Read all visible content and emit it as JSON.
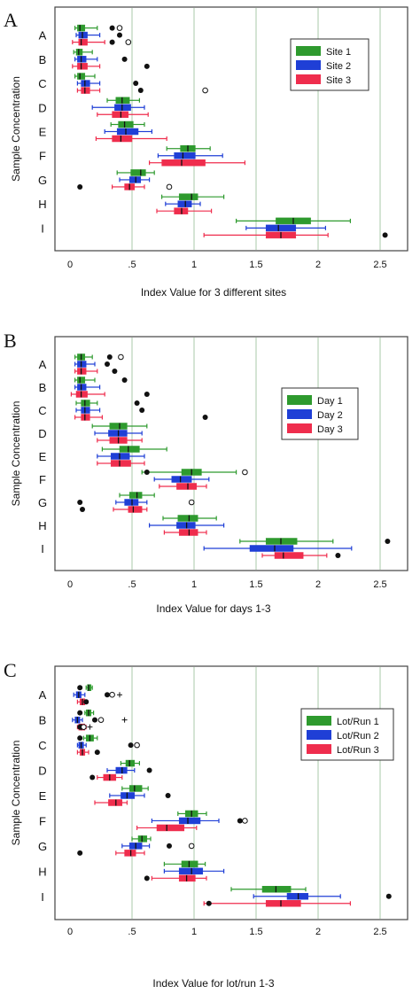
{
  "colors": {
    "series1": "#2e9a2e",
    "series2": "#1f3fd6",
    "series3": "#ef2d4d",
    "grid": "#a8c8a8",
    "frame": "#444444"
  },
  "chart_data": [
    {
      "type": "box",
      "panel_label": "A",
      "xlabel": "Index Value for 3 different sites",
      "ylabel": "Sample Concentration",
      "xlim": [
        -0.05,
        2.65
      ],
      "ticks": [
        0,
        0.5,
        1,
        1.5,
        2,
        2.5
      ],
      "tick_labels": [
        "0",
        ".5",
        "1",
        "1.5",
        "2",
        "2.5"
      ],
      "legend_position": "top-right",
      "categories": [
        "A",
        "B",
        "C",
        "D",
        "E",
        "F",
        "G",
        "H",
        "I"
      ],
      "series": [
        {
          "name": "Site 1",
          "boxes": [
            [
              0.04,
              0.06,
              0.08,
              0.12,
              0.22
            ],
            [
              0.03,
              0.05,
              0.07,
              0.1,
              0.18
            ],
            [
              0.04,
              0.06,
              0.08,
              0.12,
              0.2
            ],
            [
              0.3,
              0.37,
              0.42,
              0.48,
              0.56
            ],
            [
              0.33,
              0.39,
              0.44,
              0.51,
              0.6
            ],
            [
              0.78,
              0.89,
              0.95,
              1.01,
              1.13
            ],
            [
              0.38,
              0.49,
              0.57,
              0.61,
              0.68
            ],
            [
              0.74,
              0.88,
              0.98,
              1.03,
              1.24
            ],
            [
              1.34,
              1.66,
              1.8,
              1.94,
              2.26
            ]
          ],
          "outliers": [
            [
              0.34,
              0.4
            ],
            [],
            [],
            [],
            [],
            [],
            [],
            [],
            []
          ]
        },
        {
          "name": "Site 2",
          "boxes": [
            [
              0.05,
              0.07,
              0.1,
              0.14,
              0.24
            ],
            [
              0.04,
              0.06,
              0.09,
              0.13,
              0.22
            ],
            [
              0.06,
              0.09,
              0.12,
              0.16,
              0.24
            ],
            [
              0.18,
              0.36,
              0.42,
              0.49,
              0.6
            ],
            [
              0.28,
              0.38,
              0.45,
              0.55,
              0.66
            ],
            [
              0.71,
              0.84,
              0.91,
              1.01,
              1.23
            ],
            [
              0.4,
              0.48,
              0.53,
              0.57,
              0.64
            ],
            [
              0.77,
              0.87,
              0.93,
              0.98,
              1.05
            ],
            [
              1.42,
              1.58,
              1.68,
              1.82,
              2.06
            ]
          ],
          "outliers": [
            [
              0.4
            ],
            [
              0.44
            ],
            [
              0.53
            ],
            [],
            [],
            [],
            [],
            [],
            []
          ]
        },
        {
          "name": "Site 3",
          "boxes": [
            [
              0.02,
              0.07,
              0.09,
              0.14,
              0.28
            ],
            [
              0.02,
              0.06,
              0.09,
              0.14,
              0.24
            ],
            [
              0.06,
              0.09,
              0.12,
              0.16,
              0.24
            ],
            [
              0.22,
              0.34,
              0.41,
              0.47,
              0.63
            ],
            [
              0.21,
              0.34,
              0.41,
              0.5,
              0.78
            ],
            [
              0.64,
              0.74,
              0.9,
              1.09,
              1.41
            ],
            [
              0.34,
              0.44,
              0.48,
              0.52,
              0.6
            ],
            [
              0.7,
              0.84,
              0.9,
              0.95,
              1.14
            ],
            [
              1.08,
              1.58,
              1.7,
              1.82,
              2.08
            ]
          ],
          "outliers": [
            [
              0.34,
              0.47
            ],
            [
              0.62
            ],
            [
              0.57,
              1.09
            ],
            [],
            [],
            [],
            [
              0.08,
              0.8
            ],
            [],
            [
              2.54
            ]
          ]
        }
      ]
    },
    {
      "type": "box",
      "panel_label": "B",
      "xlabel": "Index Value for days 1-3",
      "ylabel": "Sample Concentration",
      "xlim": [
        -0.05,
        2.65
      ],
      "ticks": [
        0,
        0.5,
        1,
        1.5,
        2,
        2.5
      ],
      "tick_labels": [
        "0",
        ".5",
        "1",
        "1.5",
        "2",
        "2.5"
      ],
      "legend_position": "top-right",
      "categories": [
        "A",
        "B",
        "C",
        "D",
        "E",
        "F",
        "G",
        "H",
        "I"
      ],
      "series": [
        {
          "name": "Day 1",
          "boxes": [
            [
              0.04,
              0.06,
              0.09,
              0.12,
              0.18
            ],
            [
              0.04,
              0.06,
              0.08,
              0.12,
              0.2
            ],
            [
              0.05,
              0.09,
              0.12,
              0.16,
              0.22
            ],
            [
              0.18,
              0.32,
              0.4,
              0.46,
              0.62
            ],
            [
              0.26,
              0.4,
              0.47,
              0.56,
              0.78
            ],
            [
              0.58,
              0.9,
              0.98,
              1.06,
              1.34
            ],
            [
              0.4,
              0.48,
              0.54,
              0.58,
              0.68
            ],
            [
              0.75,
              0.87,
              0.96,
              1.03,
              1.18
            ],
            [
              1.37,
              1.58,
              1.7,
              1.83,
              2.12
            ]
          ],
          "outliers": [
            [
              0.32,
              0.41
            ],
            [
              0.44
            ],
            [
              0.54
            ],
            [],
            [],
            [
              0.62,
              1.41
            ],
            [],
            [],
            [
              2.56
            ]
          ]
        },
        {
          "name": "Day 2",
          "boxes": [
            [
              0.04,
              0.06,
              0.09,
              0.13,
              0.2
            ],
            [
              0.04,
              0.06,
              0.09,
              0.13,
              0.24
            ],
            [
              0.05,
              0.09,
              0.12,
              0.16,
              0.24
            ],
            [
              0.2,
              0.31,
              0.39,
              0.46,
              0.58
            ],
            [
              0.22,
              0.33,
              0.4,
              0.48,
              0.6
            ],
            [
              0.68,
              0.82,
              0.89,
              0.98,
              1.12
            ],
            [
              0.37,
              0.44,
              0.5,
              0.55,
              0.62
            ],
            [
              0.64,
              0.86,
              0.94,
              1.01,
              1.24
            ],
            [
              1.08,
              1.45,
              1.65,
              1.8,
              2.27
            ]
          ],
          "outliers": [
            [
              0.3
            ],
            [],
            [
              0.58
            ],
            [],
            [],
            [],
            [
              0.08,
              0.98
            ],
            [],
            []
          ]
        },
        {
          "name": "Day 3",
          "boxes": [
            [
              0.04,
              0.06,
              0.09,
              0.13,
              0.22
            ],
            [
              0.01,
              0.05,
              0.09,
              0.14,
              0.28
            ],
            [
              0.04,
              0.09,
              0.12,
              0.16,
              0.26
            ],
            [
              0.22,
              0.32,
              0.39,
              0.46,
              0.58
            ],
            [
              0.22,
              0.33,
              0.4,
              0.49,
              0.6
            ],
            [
              0.72,
              0.86,
              0.95,
              1.02,
              1.1
            ],
            [
              0.35,
              0.47,
              0.51,
              0.58,
              0.62
            ],
            [
              0.76,
              0.88,
              0.96,
              1.03,
              1.1
            ],
            [
              1.55,
              1.65,
              1.72,
              1.88,
              2.07
            ]
          ],
          "outliers": [
            [
              0.36
            ],
            [
              0.62
            ],
            [
              1.09
            ],
            [],
            [],
            [],
            [
              0.1
            ],
            [],
            [
              2.16
            ]
          ]
        }
      ]
    },
    {
      "type": "box",
      "panel_label": "C",
      "xlabel": "Index Value for lot/run 1-3",
      "ylabel": "Sample Concentration",
      "xlim": [
        -0.05,
        2.65
      ],
      "ticks": [
        0,
        0.5,
        1,
        1.5,
        2,
        2.5
      ],
      "tick_labels": [
        "0",
        ".5",
        "1",
        "1.5",
        "2",
        "2.5"
      ],
      "legend_position": "top-right",
      "categories": [
        "A",
        "B",
        "C",
        "D",
        "E",
        "F",
        "G",
        "H",
        "I"
      ],
      "series": [
        {
          "name": "Lot/Run 1",
          "boxes": [
            [
              0.13,
              0.14,
              0.15,
              0.17,
              0.18
            ],
            [
              0.12,
              0.13,
              0.15,
              0.17,
              0.19
            ],
            [
              0.11,
              0.13,
              0.16,
              0.19,
              0.22
            ],
            [
              0.41,
              0.45,
              0.48,
              0.52,
              0.56
            ],
            [
              0.42,
              0.48,
              0.52,
              0.58,
              0.63
            ],
            [
              0.87,
              0.93,
              0.98,
              1.03,
              1.1
            ],
            [
              0.5,
              0.55,
              0.58,
              0.62,
              0.65
            ],
            [
              0.76,
              0.9,
              0.96,
              1.03,
              1.09
            ],
            [
              1.3,
              1.55,
              1.66,
              1.78,
              1.9
            ]
          ],
          "outliers": [
            [
              0.08
            ],
            [
              0.08
            ],
            [
              0.08
            ],
            [],
            [],
            [],
            [],
            [],
            []
          ]
        },
        {
          "name": "Lot/Run 2",
          "boxes": [
            [
              0.03,
              0.05,
              0.07,
              0.09,
              0.12
            ],
            [
              0.02,
              0.04,
              0.06,
              0.08,
              0.1
            ],
            [
              0.06,
              0.07,
              0.09,
              0.11,
              0.13
            ],
            [
              0.3,
              0.37,
              0.42,
              0.46,
              0.52
            ],
            [
              0.32,
              0.41,
              0.46,
              0.52,
              0.6
            ],
            [
              0.66,
              0.88,
              0.95,
              1.05,
              1.2
            ],
            [
              0.42,
              0.48,
              0.53,
              0.58,
              0.64
            ],
            [
              0.76,
              0.88,
              0.98,
              1.07,
              1.24
            ],
            [
              1.48,
              1.75,
              1.84,
              1.92,
              2.18
            ]
          ],
          "outliers": [
            [
              0.3,
              0.34,
              0.4
            ],
            [
              0.2,
              0.25,
              0.44
            ],
            [
              0.49,
              0.54
            ],
            [
              0.64
            ],
            [
              0.79
            ],
            [
              1.37,
              1.41
            ],
            [
              0.8,
              0.98
            ],
            [],
            [
              2.57
            ]
          ]
        },
        {
          "name": "Lot/Run 3",
          "boxes": [
            [
              0.06,
              0.08,
              0.1,
              0.12,
              0.14
            ],
            [
              0.06,
              0.07,
              0.09,
              0.12,
              0.13
            ],
            [
              0.06,
              0.08,
              0.1,
              0.12,
              0.15
            ],
            [
              0.22,
              0.27,
              0.32,
              0.37,
              0.42
            ],
            [
              0.2,
              0.31,
              0.37,
              0.42,
              0.46
            ],
            [
              0.54,
              0.7,
              0.78,
              0.92,
              1.02
            ],
            [
              0.37,
              0.44,
              0.49,
              0.53,
              0.6
            ],
            [
              0.66,
              0.88,
              0.94,
              1.01,
              1.1
            ],
            [
              1.08,
              1.58,
              1.7,
              1.86,
              2.26
            ]
          ],
          "outliers": [
            [
              0.13
            ],
            [
              0.08,
              0.11,
              0.16
            ],
            [
              0.22
            ],
            [
              0.18
            ],
            [],
            [],
            [
              0.08
            ],
            [
              0.62
            ],
            [
              1.12
            ]
          ]
        }
      ]
    }
  ]
}
